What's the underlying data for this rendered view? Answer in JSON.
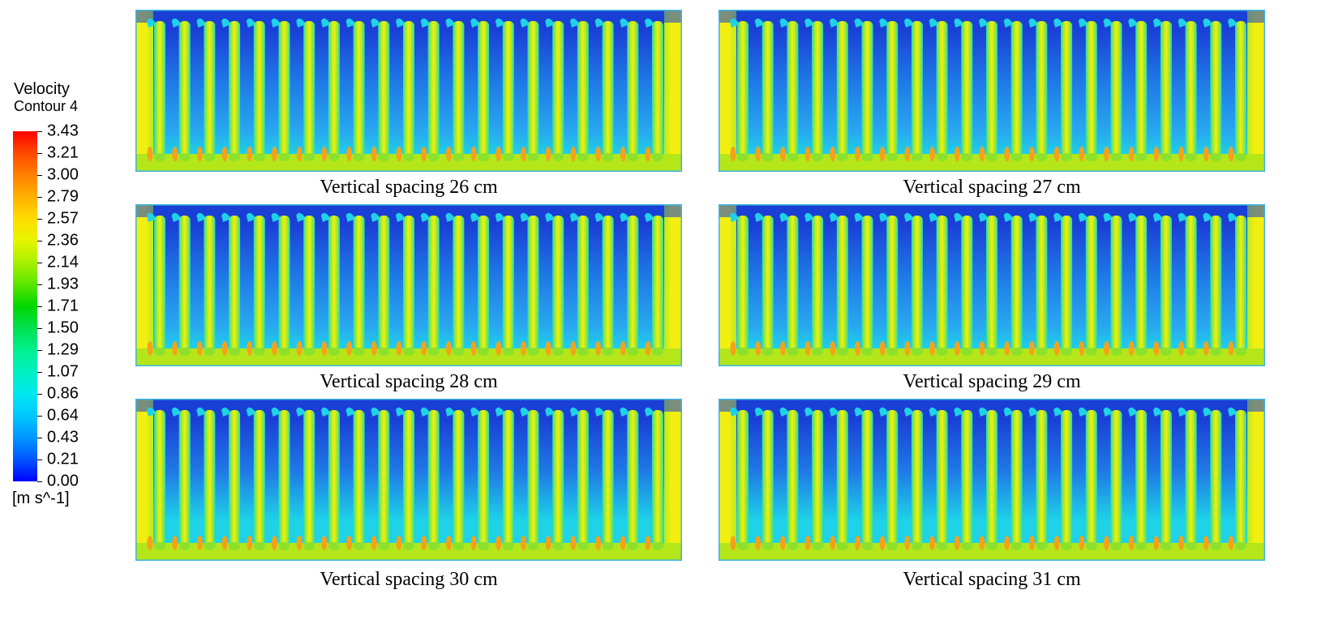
{
  "legend": {
    "title_line1": "Velocity",
    "title_line2": "Contour 4",
    "unit": "[m s^-1]",
    "tick_labels": [
      "3.43",
      "3.21",
      "3.00",
      "2.79",
      "2.57",
      "2.36",
      "2.14",
      "1.93",
      "1.71",
      "1.50",
      "1.29",
      "1.07",
      "0.86",
      "0.64",
      "0.43",
      "0.21",
      "0.00"
    ],
    "min_value": 0.0,
    "max_value": 3.43
  },
  "panels": [
    {
      "caption": "Vertical spacing 26 cm",
      "fin_count": 21
    },
    {
      "caption": "Vertical spacing 27 cm",
      "fin_count": 21
    },
    {
      "caption": "Vertical spacing 28 cm",
      "fin_count": 21
    },
    {
      "caption": "Vertical spacing 29 cm",
      "fin_count": 21
    },
    {
      "caption": "Vertical spacing 30 cm",
      "fin_count": 21
    },
    {
      "caption": "Vertical spacing 31 cm",
      "fin_count": 21
    }
  ],
  "colors": {
    "outline": "#3cb4e6",
    "deep_blue": "#1a3fd6",
    "mid_blue": "#1f7ae6",
    "cyan_blue": "#28a8f0",
    "cyan": "#1ed2e8",
    "green_cyan": "#28dcb4",
    "yellow": "#f2ee10",
    "yellow_green": "#b6ec1e",
    "green": "#8ee12a",
    "orange": "#f3a21a",
    "floor": "#b4e61a"
  }
}
